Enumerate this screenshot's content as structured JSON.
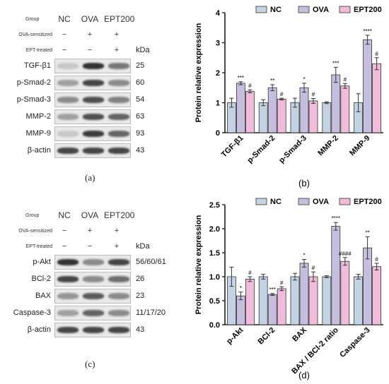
{
  "panel_a": {
    "label": "(a)",
    "header": {
      "group": "Group",
      "groups": [
        "NC",
        "OVA",
        "EPT200"
      ],
      "kda": "kDa"
    },
    "treatments": [
      {
        "label": "OVA-sensitized",
        "marks": [
          "−",
          "+",
          "+"
        ]
      },
      {
        "label": "EPT-treated",
        "marks": [
          "−",
          "−",
          "+"
        ]
      }
    ],
    "rows": [
      {
        "name": "TGF-β1",
        "kda": "25",
        "bands": [
          0.15,
          0.9,
          0.55
        ]
      },
      {
        "name": "p-Smad-2",
        "kda": "60",
        "bands": [
          0.35,
          0.8,
          0.45
        ]
      },
      {
        "name": "p-Smad-3",
        "kda": "54",
        "bands": [
          0.45,
          0.75,
          0.5
        ]
      },
      {
        "name": "MMP-2",
        "kda": "63",
        "bands": [
          0.35,
          0.75,
          0.65
        ]
      },
      {
        "name": "MMP-9",
        "kda": "93",
        "bands": [
          0.15,
          0.85,
          0.65
        ]
      },
      {
        "name": "β-actin",
        "kda": "43",
        "bands": [
          0.8,
          0.8,
          0.8
        ]
      }
    ]
  },
  "panel_c": {
    "label": "(c)",
    "header": {
      "group": "Group",
      "groups": [
        "NC",
        "OVA",
        "EPT200"
      ],
      "kda": "kDa"
    },
    "treatments": [
      {
        "label": "OVA-sensitized",
        "marks": [
          "−",
          "+",
          "+"
        ]
      },
      {
        "label": "EPT-treated",
        "marks": [
          "−",
          "−",
          "+"
        ]
      }
    ],
    "rows": [
      {
        "name": "p-Akt",
        "kda": "56/60/61",
        "bands": [
          0.9,
          0.45,
          0.8
        ]
      },
      {
        "name": "BCl-2",
        "kda": "26",
        "bands": [
          0.8,
          0.45,
          0.6
        ]
      },
      {
        "name": "BAX",
        "kda": "23",
        "bands": [
          0.4,
          0.7,
          0.45
        ]
      },
      {
        "name": "Caspase-3",
        "kda": "11/17/20",
        "bands": [
          0.35,
          0.65,
          0.45
        ]
      },
      {
        "name": "β-actin",
        "kda": "43",
        "bands": [
          0.8,
          0.8,
          0.8
        ]
      }
    ]
  },
  "colors": {
    "NC": "#c3d3e4",
    "OVA": "#c6bedf",
    "EPT200": "#f1bcdc",
    "error": "#333333"
  },
  "chart_data": [
    {
      "panel": "(b)",
      "type": "bar",
      "ylabel": "Protein relative expression",
      "ylim": [
        0,
        4
      ],
      "yticks": [
        "0",
        "1",
        "2",
        "3",
        "4"
      ],
      "legend_position": "top",
      "categories": [
        "TGF-β1",
        "p-Smad-2",
        "p-Smad-3",
        "MMP-2",
        "MMP-9"
      ],
      "series": [
        {
          "name": "NC",
          "values": [
            1.0,
            1.0,
            1.0,
            1.0,
            1.0
          ],
          "errors": [
            0.15,
            0.1,
            0.15,
            0.03,
            0.3
          ]
        },
        {
          "name": "OVA",
          "values": [
            1.65,
            1.5,
            1.5,
            1.93,
            3.1
          ],
          "errors": [
            0.05,
            0.1,
            0.15,
            0.25,
            0.15
          ]
        },
        {
          "name": "EPT200",
          "values": [
            1.38,
            1.12,
            1.06,
            1.56,
            2.3
          ],
          "errors": [
            0.05,
            0.03,
            0.08,
            0.08,
            0.2
          ]
        }
      ],
      "annotations": [
        [
          "",
          "***",
          "#"
        ],
        [
          "",
          "**",
          "#"
        ],
        [
          "",
          "*",
          "#"
        ],
        [
          "",
          "***",
          "#"
        ],
        [
          "",
          "****",
          "#"
        ]
      ]
    },
    {
      "panel": "(d)",
      "type": "bar",
      "ylabel": "Protein relative expression",
      "ylim": [
        0,
        2.5
      ],
      "yticks": [
        "0.0",
        "0.5",
        "1.0",
        "1.5",
        "2.0",
        "2.5"
      ],
      "legend_position": "top",
      "categories": [
        "p-Akt",
        "BCl-2",
        "BAX",
        "BAX / BCl-2 ratio",
        "Caspase-3"
      ],
      "series": [
        {
          "name": "NC",
          "values": [
            1.0,
            1.0,
            1.0,
            1.0,
            1.0
          ],
          "errors": [
            0.2,
            0.05,
            0.07,
            0.02,
            0.05
          ]
        },
        {
          "name": "OVA",
          "values": [
            0.6,
            0.63,
            1.28,
            2.05,
            1.6
          ],
          "errors": [
            0.08,
            0.02,
            0.08,
            0.08,
            0.23
          ]
        },
        {
          "name": "EPT200",
          "values": [
            0.95,
            0.75,
            1.0,
            1.32,
            1.21
          ],
          "errors": [
            0.05,
            0.04,
            0.1,
            0.08,
            0.07
          ]
        }
      ],
      "annotations": [
        [
          "",
          "*",
          "#"
        ],
        [
          "",
          "***",
          "#"
        ],
        [
          "",
          "*",
          "#"
        ],
        [
          "",
          "****",
          "####"
        ],
        [
          "",
          "**",
          "#"
        ]
      ]
    }
  ]
}
